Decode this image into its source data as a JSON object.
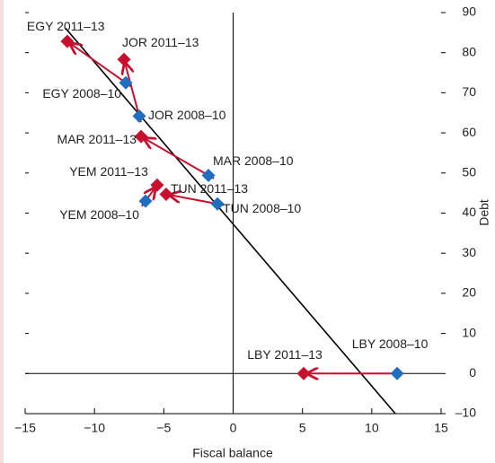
{
  "chart_data": {
    "type": "scatter",
    "x_label": "Fiscal balance",
    "y_label": "Debt",
    "xlim": [
      -15,
      15
    ],
    "xticks": [
      {
        "value": -15,
        "label": "−15"
      },
      {
        "value": -10,
        "label": "−10"
      },
      {
        "value": -5,
        "label": "−5"
      },
      0,
      5,
      10,
      15
    ],
    "ylim": [
      -10,
      90
    ],
    "yticks": [
      {
        "value": -10,
        "label": "–10"
      },
      0,
      10,
      20,
      30,
      40,
      50,
      60,
      70,
      80,
      90
    ],
    "series": [
      {
        "color": "#1f6fc0",
        "labels": [
          "EGY 2008–10",
          "JOR 2008–10",
          "MAR 2008–10",
          "YEM 2008–10",
          "TUN 2008–10",
          "LBY 2008–10"
        ],
        "x": [
          -7.74,
          -6.77,
          -1.78,
          -6.32,
          -1.13,
          11.83
        ],
        "values": [
          72.5,
          64.2,
          49.4,
          43.0,
          42.3,
          0
        ]
      },
      {
        "color": "#c8102e",
        "labels": [
          "EGY 2011–13",
          "JOR 2011–13",
          "MAR 2011–13",
          "YEM 2011–13",
          "TUN 2011–13",
          "LBY 2011–13"
        ],
        "x": [
          -11.96,
          -7.87,
          -6.64,
          -5.48,
          -4.83,
          5.09
        ],
        "values": [
          82.8,
          78.3,
          59.1,
          47.0,
          44.7,
          0
        ]
      }
    ],
    "fit_line": {
      "color": "#000000",
      "x": [
        -12.09,
        11.7
      ],
      "values": [
        86.1,
        -10
      ]
    }
  }
}
